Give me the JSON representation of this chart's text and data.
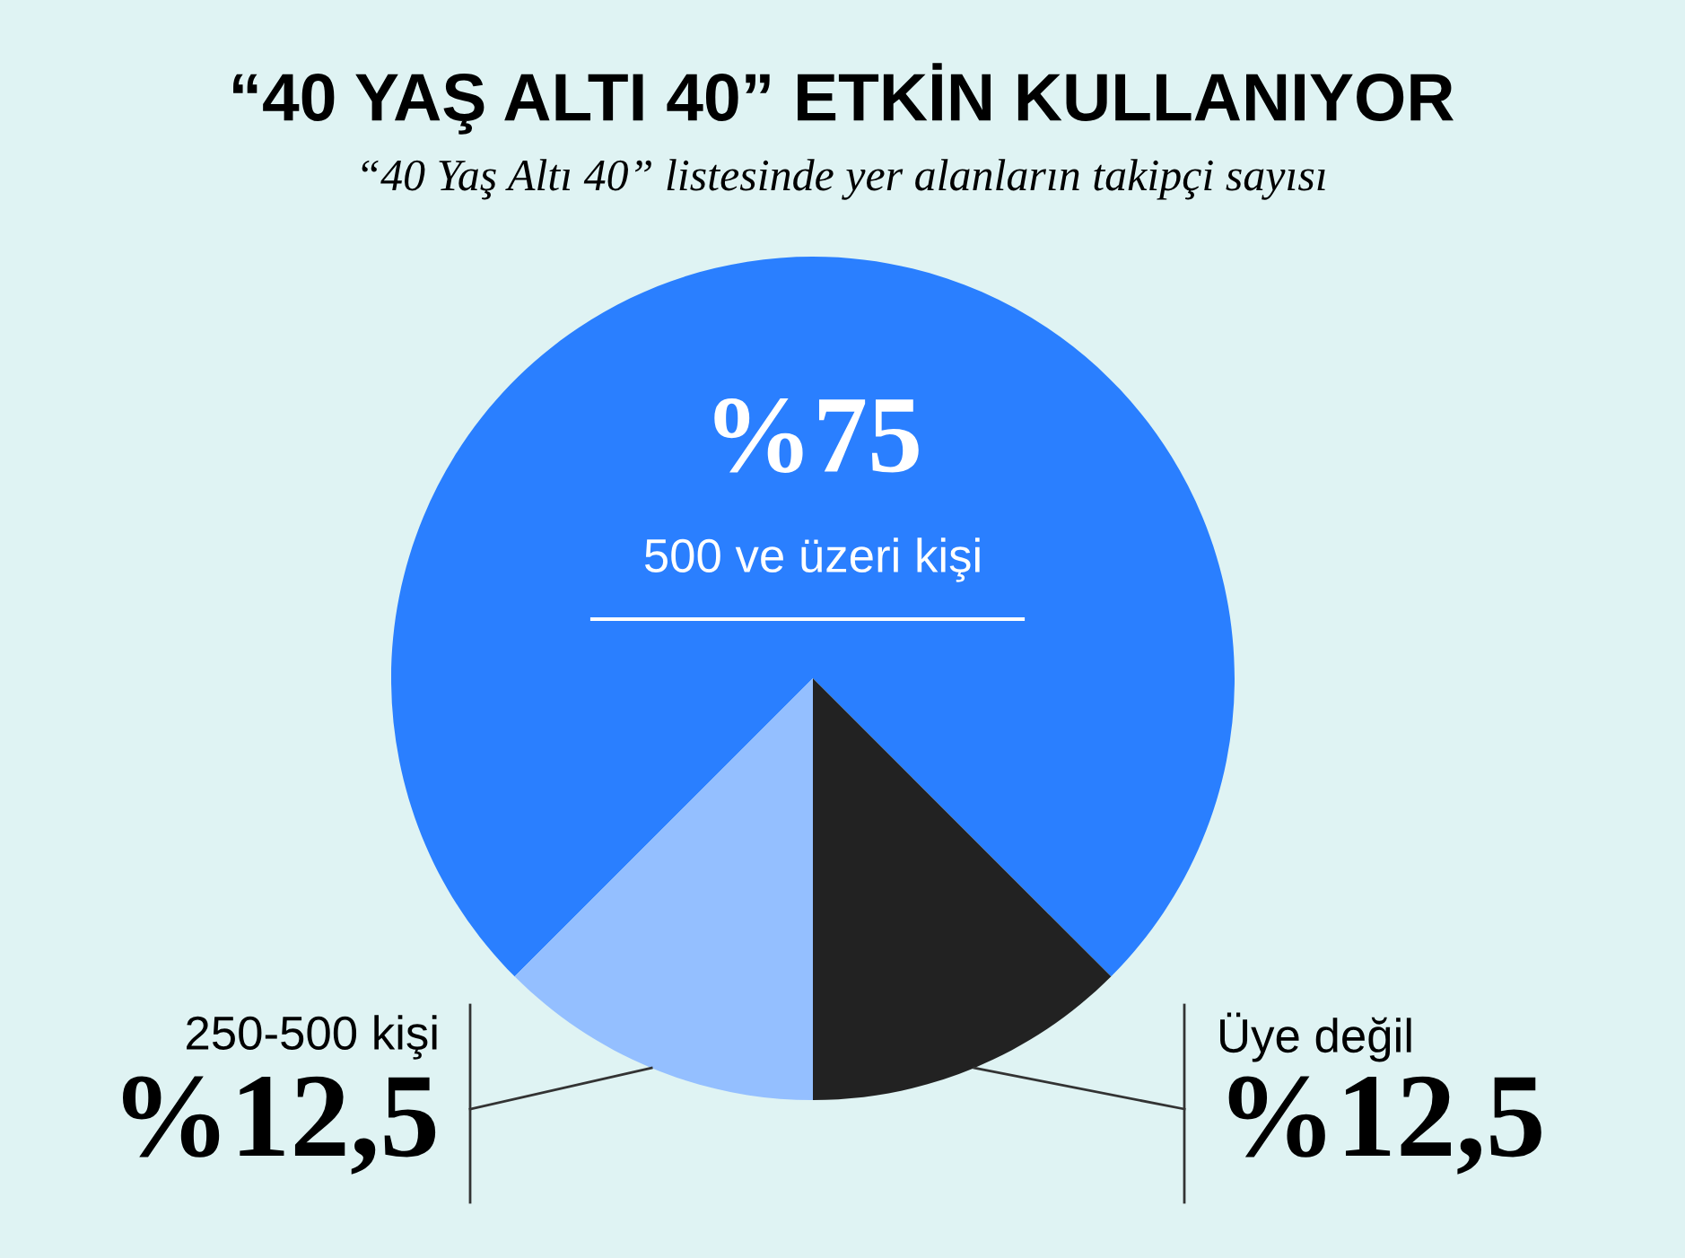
{
  "chart_data": {
    "type": "pie",
    "title": "“40 YAŞ ALTI 40” ETKİN KULLANIYOR",
    "subtitle": "“40 Yaş Altı 40” listesinde yer alanların takipçi sayısı",
    "categories": [
      "500 ve üzeri kişi",
      "250-500 kişi",
      "Üye değil"
    ],
    "values": [
      75,
      12.5,
      12.5
    ],
    "value_labels": [
      "%75",
      "%12,5",
      "%12,5"
    ],
    "colors": [
      "#2a7fff",
      "#94bfff",
      "#222222"
    ],
    "legend": false
  }
}
